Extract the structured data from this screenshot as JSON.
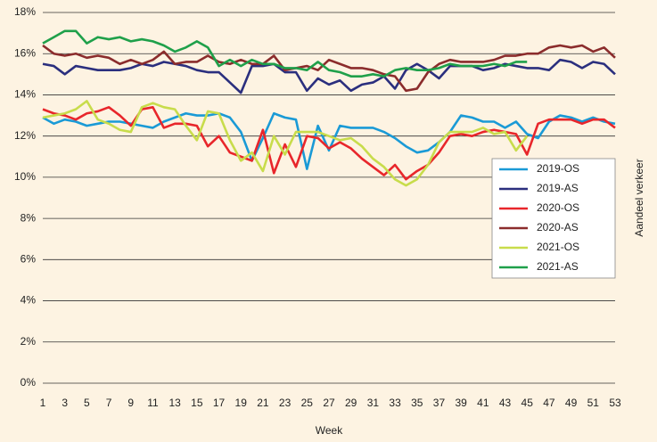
{
  "chart_data": {
    "type": "line",
    "x_label": "Week",
    "y_label": "Aandeel verkeer",
    "x": [
      1,
      2,
      3,
      4,
      5,
      6,
      7,
      8,
      9,
      10,
      11,
      12,
      13,
      14,
      15,
      16,
      17,
      18,
      19,
      20,
      21,
      22,
      23,
      24,
      25,
      26,
      27,
      28,
      29,
      30,
      31,
      32,
      33,
      34,
      35,
      36,
      37,
      38,
      39,
      40,
      41,
      42,
      43,
      44,
      45,
      46,
      47,
      48,
      49,
      50,
      51,
      52,
      53
    ],
    "xlim": [
      1,
      53
    ],
    "xticks": [
      1,
      3,
      5,
      7,
      9,
      11,
      13,
      15,
      17,
      19,
      21,
      23,
      25,
      27,
      29,
      31,
      33,
      35,
      37,
      39,
      41,
      43,
      45,
      47,
      49,
      51,
      53
    ],
    "ylim": [
      0,
      18
    ],
    "yticks": [
      {
        "value": 0,
        "label": "0%"
      },
      {
        "value": 2,
        "label": "2%"
      },
      {
        "value": 4,
        "label": "4%"
      },
      {
        "value": 6,
        "label": "6%"
      },
      {
        "value": 8,
        "label": "8%"
      },
      {
        "value": 10,
        "label": "10%"
      },
      {
        "value": 12,
        "label": "12%"
      },
      {
        "value": 14,
        "label": "14%"
      },
      {
        "value": 16,
        "label": "16%"
      },
      {
        "value": 18,
        "label": "18%"
      }
    ],
    "grid": true,
    "legend": "right",
    "series": [
      {
        "name": "2019-OS",
        "color": "#1a9ad6",
        "values": [
          12.9,
          12.6,
          12.8,
          12.7,
          12.5,
          12.6,
          12.7,
          12.7,
          12.6,
          12.5,
          12.4,
          12.7,
          12.9,
          13.1,
          13.0,
          13.0,
          13.1,
          12.9,
          12.2,
          10.8,
          11.9,
          13.1,
          12.9,
          12.8,
          10.4,
          12.5,
          11.3,
          12.5,
          12.4,
          12.4,
          12.4,
          12.2,
          11.9,
          11.5,
          11.2,
          11.3,
          11.7,
          12.2,
          13.0,
          12.9,
          12.7,
          12.7,
          12.4,
          12.7,
          12.1,
          11.9,
          12.7,
          13.0,
          12.9,
          12.7,
          12.9,
          12.7,
          12.6
        ]
      },
      {
        "name": "2019-AS",
        "color": "#2b2f7e",
        "values": [
          15.5,
          15.4,
          15.0,
          15.4,
          15.3,
          15.2,
          15.2,
          15.2,
          15.3,
          15.5,
          15.4,
          15.6,
          15.5,
          15.4,
          15.2,
          15.1,
          15.1,
          14.6,
          14.1,
          15.4,
          15.4,
          15.5,
          15.1,
          15.1,
          14.2,
          14.8,
          14.5,
          14.7,
          14.2,
          14.5,
          14.6,
          14.9,
          14.3,
          15.2,
          15.5,
          15.2,
          14.8,
          15.4,
          15.4,
          15.4,
          15.2,
          15.3,
          15.5,
          15.4,
          15.3,
          15.3,
          15.2,
          15.7,
          15.6,
          15.3,
          15.6,
          15.5,
          15.0
        ]
      },
      {
        "name": "2020-OS",
        "color": "#e8262b",
        "values": [
          13.3,
          13.1,
          13.0,
          12.8,
          13.1,
          13.2,
          13.4,
          13.0,
          12.5,
          13.3,
          13.4,
          12.4,
          12.6,
          12.6,
          12.5,
          11.5,
          12.0,
          11.2,
          11.0,
          10.8,
          12.3,
          10.2,
          11.6,
          10.5,
          12.0,
          11.9,
          11.4,
          11.7,
          11.4,
          10.9,
          10.5,
          10.1,
          10.6,
          9.9,
          10.3,
          10.6,
          11.2,
          12.0,
          12.1,
          12.0,
          12.2,
          12.3,
          12.2,
          12.1,
          11.1,
          12.6,
          12.8,
          12.8,
          12.8,
          12.6,
          12.8,
          12.8,
          12.4
        ]
      },
      {
        "name": "2020-AS",
        "color": "#8b2c2c",
        "values": [
          16.4,
          16.0,
          15.9,
          16.0,
          15.8,
          15.9,
          15.8,
          15.5,
          15.7,
          15.5,
          15.7,
          16.1,
          15.5,
          15.6,
          15.6,
          15.9,
          15.6,
          15.5,
          15.7,
          15.5,
          15.5,
          15.9,
          15.2,
          15.3,
          15.4,
          15.2,
          15.7,
          15.5,
          15.3,
          15.3,
          15.2,
          15.0,
          14.9,
          14.2,
          14.3,
          15.1,
          15.5,
          15.7,
          15.6,
          15.6,
          15.6,
          15.7,
          15.9,
          15.9,
          16.0,
          16.0,
          16.3,
          16.4,
          16.3,
          16.4,
          16.1,
          16.3,
          15.8
        ]
      },
      {
        "name": "2021-OS",
        "color": "#c8dc4b",
        "values": [
          12.9,
          13.0,
          13.1,
          13.3,
          13.7,
          12.8,
          12.6,
          12.3,
          12.2,
          13.4,
          13.6,
          13.4,
          13.3,
          12.5,
          11.8,
          13.2,
          13.1,
          11.8,
          10.8,
          11.2,
          10.3,
          12.0,
          11.1,
          12.2,
          12.2,
          12.2,
          12.0,
          11.8,
          11.9,
          11.5,
          10.9,
          10.5,
          9.9,
          9.6,
          9.9,
          10.6,
          11.7,
          12.2,
          12.2,
          12.2,
          12.4,
          12.1,
          12.2,
          11.3,
          12.0,
          null,
          null,
          null,
          null,
          null,
          null,
          null,
          null
        ]
      },
      {
        "name": "2021-AS",
        "color": "#1fa04a",
        "values": [
          16.5,
          16.8,
          17.1,
          17.1,
          16.5,
          16.8,
          16.7,
          16.8,
          16.6,
          16.7,
          16.6,
          16.4,
          16.1,
          16.3,
          16.6,
          16.3,
          15.4,
          15.7,
          15.4,
          15.7,
          15.5,
          15.5,
          15.3,
          15.3,
          15.2,
          15.6,
          15.2,
          15.1,
          14.9,
          14.9,
          15.0,
          14.9,
          15.2,
          15.3,
          15.2,
          15.2,
          15.3,
          15.5,
          15.4,
          15.4,
          15.4,
          15.5,
          15.4,
          15.6,
          15.6,
          null,
          null,
          null,
          null,
          null,
          null,
          null,
          null
        ]
      }
    ]
  }
}
